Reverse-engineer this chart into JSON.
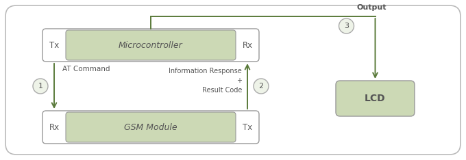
{
  "bg_color": "#ffffff",
  "outer_box_color": "#bbbbbb",
  "box_fill_green": "#ccd9b5",
  "box_fill_white": "#ffffff",
  "box_edge_color": "#999999",
  "arrow_color": "#5a7a3a",
  "text_color": "#555555",
  "circle_fill": "#eef3e8",
  "circle_edge": "#aaaaaa",
  "microcontroller_label": "Microcontroller",
  "gsm_label": "GSM Module",
  "lcd_label": "LCD",
  "tx_mc": "Tx",
  "rx_mc": "Rx",
  "rx_gsm": "Rx",
  "tx_gsm": "Tx",
  "label_at": "AT Command",
  "label_info": "Information Response\n+\nResult Code",
  "label_output": "Output",
  "circle1": "1",
  "circle2": "2",
  "circle3": "3",
  "figsize": [
    6.8,
    2.34
  ],
  "dpi": 100
}
